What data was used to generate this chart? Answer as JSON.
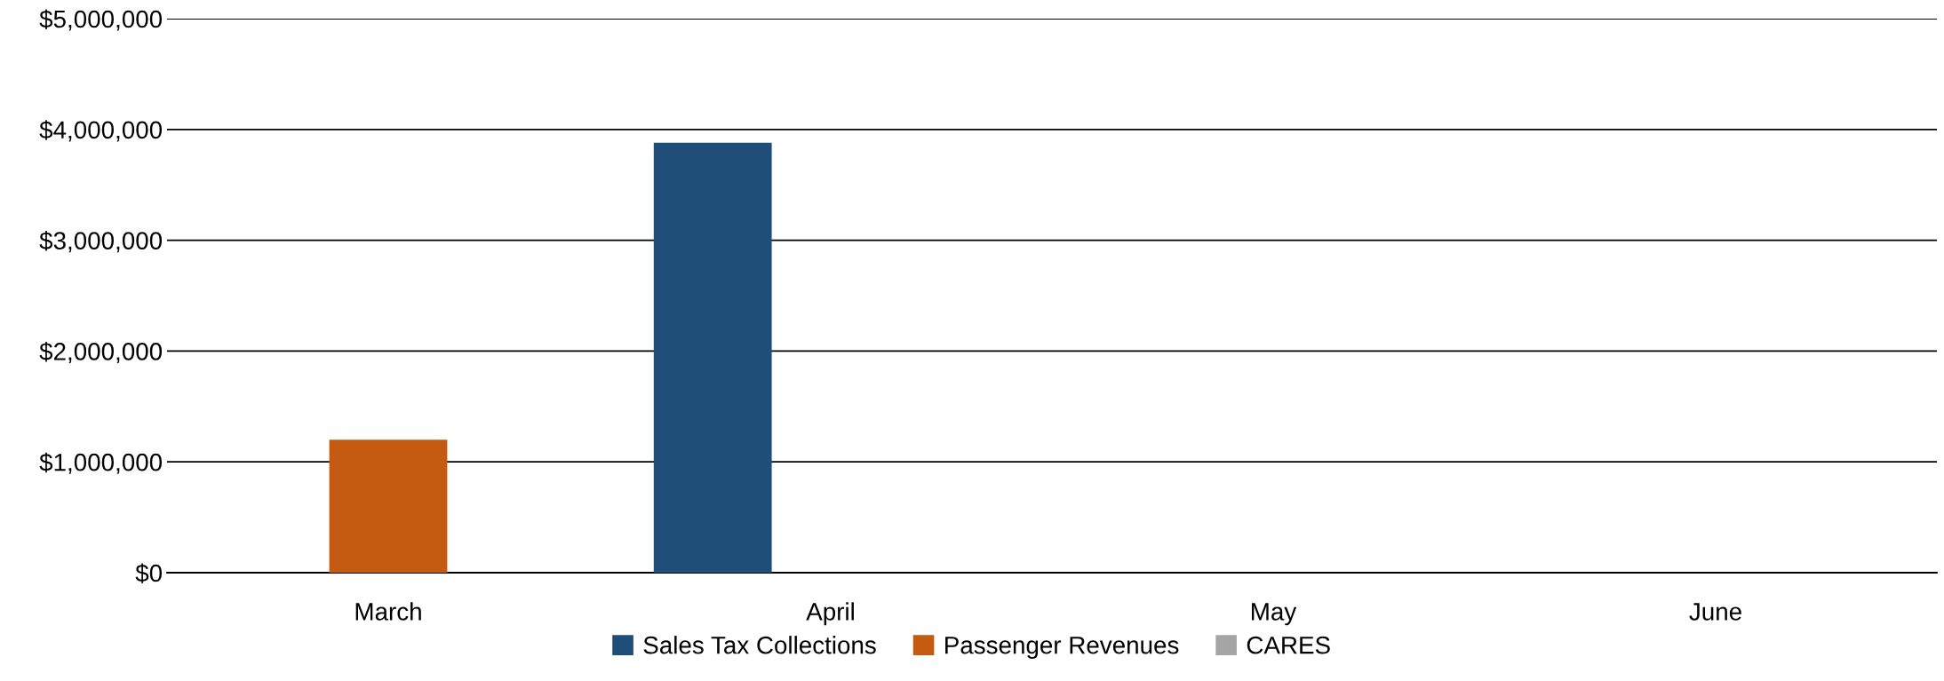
{
  "chart_data": {
    "type": "bar",
    "categories": [
      "March",
      "April",
      "May",
      "June"
    ],
    "series": [
      {
        "name": "Sales Tax Collections",
        "color": "#1f4e79",
        "values": [
          null,
          3880000,
          null,
          null
        ]
      },
      {
        "name": "Passenger Revenues",
        "color": "#c55a11",
        "values": [
          1200000,
          null,
          null,
          null
        ]
      },
      {
        "name": "CARES",
        "color": "#a5a5a5",
        "values": [
          null,
          null,
          null,
          null
        ]
      }
    ],
    "ylim": [
      0,
      5000000
    ],
    "yticks": [
      {
        "value": 0,
        "label": "$0"
      },
      {
        "value": 1000000,
        "label": "$1,000,000"
      },
      {
        "value": 2000000,
        "label": "$2,000,000"
      },
      {
        "value": 3000000,
        "label": "$3,000,000"
      },
      {
        "value": 4000000,
        "label": "$4,000,000"
      },
      {
        "value": 5000000,
        "label": "$5,000,000"
      }
    ],
    "grid": "y",
    "legend": "bottom"
  }
}
